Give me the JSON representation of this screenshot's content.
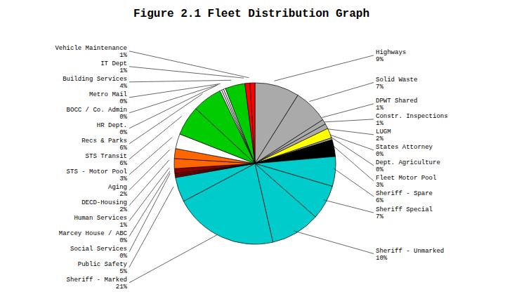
{
  "chart_data": {
    "type": "pie",
    "title": "Figure 2.1 Fleet Distribution Graph",
    "categories": [
      "Highways",
      "Solid Waste",
      "DPWT Shared",
      "Constr. Inspections",
      "LUGM",
      "States Attorney",
      "Dept. Agriculture",
      "Fleet Motor Pool",
      "Sheriff - Spare",
      "Sheriff Special",
      "Sheriff - Unmarked",
      "Sheriff - Marked",
      "Public Safety",
      "Social Services",
      "Marcey House / ABC",
      "Human Services",
      "DECD-Housing",
      "Aging",
      "STS - Motor Pool",
      "STS Transit",
      "Recs & Parks",
      "HR Dept.",
      "BOCC / Co. Admin",
      "Metro Mail",
      "Building Services",
      "IT Dept",
      "Vehicle Maintenance"
    ],
    "values": [
      9,
      7,
      1,
      1,
      2,
      0.4,
      0.4,
      3,
      6,
      7,
      10,
      21,
      5,
      0.4,
      0.4,
      1,
      2,
      2,
      3,
      6,
      6,
      0.4,
      0.4,
      0.4,
      4,
      1,
      1
    ],
    "value_labels": [
      "9%",
      "7%",
      "1%",
      "1%",
      "2%",
      "0%",
      "0%",
      "3%",
      "6%",
      "7%",
      "10%",
      "21%",
      "5%",
      "0%",
      "0%",
      "1%",
      "2%",
      "2%",
      "3%",
      "6%",
      "6%",
      "0%",
      "0%",
      "0%",
      "4%",
      "1%",
      "1%"
    ],
    "colors": [
      "#AAAAAA",
      "#AAAAAA",
      "#AAAAAA",
      "#AAAAAA",
      "#FFFF00",
      "#AAAAAA",
      "#000000",
      "#000000",
      "#00CCCC",
      "#00CCCC",
      "#00CCCC",
      "#00CCCC",
      "#00CCCC",
      "#8B0000",
      "#8B0000",
      "#8B0000",
      "#FF6600",
      "#FF6600",
      "#FFFFFF",
      "#00CC00",
      "#00CC00",
      "#FFFFFF",
      "#FFFFFF",
      "#FFFFFF",
      "#00CC00",
      "#FF0000",
      "#FF0000"
    ],
    "data_labels": true
  }
}
